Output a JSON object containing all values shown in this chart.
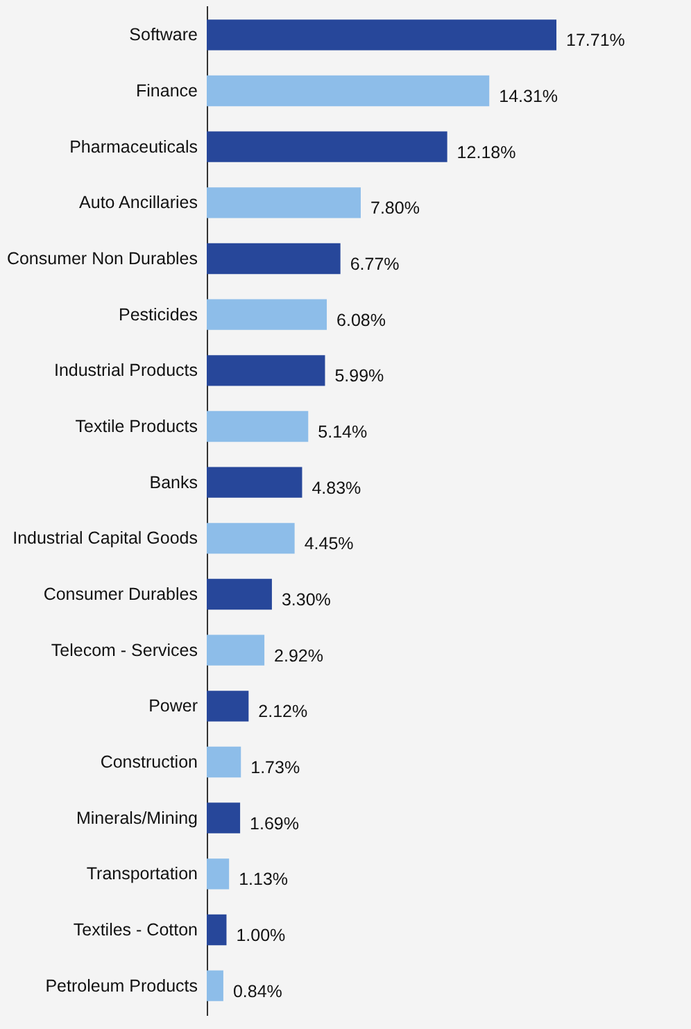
{
  "chart_data": {
    "type": "bar",
    "orientation": "horizontal",
    "categories": [
      "Software",
      "Finance",
      "Pharmaceuticals",
      "Auto Ancillaries",
      "Consumer Non Durables",
      "Pesticides",
      "Industrial Products",
      "Textile Products",
      "Banks",
      "Industrial Capital Goods",
      "Consumer Durables",
      "Telecom - Services",
      "Power",
      "Construction",
      "Minerals/Mining",
      "Transportation",
      "Textiles - Cotton",
      "Petroleum Products"
    ],
    "values": [
      17.71,
      14.31,
      12.18,
      7.8,
      6.77,
      6.08,
      5.99,
      5.14,
      4.83,
      4.45,
      3.3,
      2.92,
      2.12,
      1.73,
      1.69,
      1.13,
      1.0,
      0.84
    ],
    "value_labels": [
      "17.71%",
      "14.31%",
      "12.18%",
      "7.80%",
      "6.77%",
      "6.08%",
      "5.99%",
      "5.14%",
      "4.83%",
      "4.45%",
      "3.30%",
      "2.92%",
      "2.12%",
      "1.73%",
      "1.69%",
      "1.13%",
      "1.00%",
      "0.84%"
    ],
    "colors": [
      "#27479a",
      "#8dbde9",
      "#27479a",
      "#8dbde9",
      "#27479a",
      "#8dbde9",
      "#27479a",
      "#8dbde9",
      "#27479a",
      "#8dbde9",
      "#27479a",
      "#8dbde9",
      "#27479a",
      "#8dbde9",
      "#27479a",
      "#8dbde9",
      "#27479a",
      "#8dbde9"
    ],
    "tick_labels": "y"
  }
}
